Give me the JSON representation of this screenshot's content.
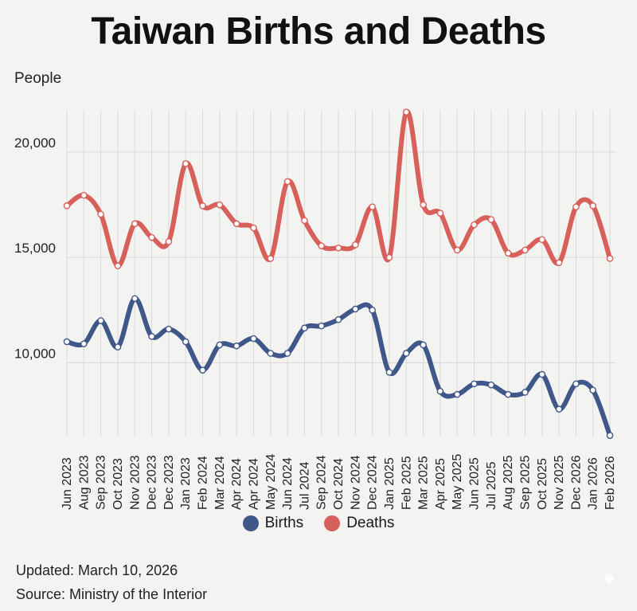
{
  "title": "Taiwan Births and Deaths",
  "footer": {
    "updated": "Updated: March 10, 2026",
    "source": "Source: Ministry of the Interior"
  },
  "colors": {
    "births": "#40578a",
    "deaths": "#d7605a",
    "grid": "#d9d9d9",
    "background": "#f3f3f1"
  },
  "chart_data": {
    "type": "line",
    "title": "Taiwan Births and Deaths",
    "xlabel": "",
    "ylabel": "People",
    "ylim": [
      6500,
      22000
    ],
    "yticks": [
      10000,
      15000,
      20000
    ],
    "ytick_labels": [
      "10,000",
      "15,000",
      "20,000"
    ],
    "grid": true,
    "legend": "bottom",
    "categories": [
      "Jun 2023",
      "Aug 2023",
      "Sep 2023",
      "Oct 2023",
      "Nov 2023",
      "Dec 2023",
      "Dec 2023",
      "Jan 2023",
      "Feb 2024",
      "Mar 2024",
      "Apr 2024",
      "Apr 2024",
      "May 2024",
      "Jun 2024",
      "Jul 2024",
      "Sep 2024",
      "Oct 2024",
      "Nov 2024",
      "Dec 2024",
      "Jan 2025",
      "Feb 2025",
      "Mar 2025",
      "Apr 2025",
      "May 2025",
      "Jun 2025",
      "Jul 2025",
      "Aug 2025",
      "Sep 2025",
      "Oct 2025",
      "Nov 2025",
      "Dec 2026",
      "Jan 2026",
      "Feb 2026"
    ],
    "series": [
      {
        "name": "Births",
        "values": [
          11000,
          10900,
          12000,
          10750,
          13050,
          11250,
          11600,
          11000,
          9650,
          10850,
          10800,
          11150,
          10450,
          10450,
          11650,
          11750,
          12050,
          12550,
          12500,
          9550,
          10450,
          10850,
          8650,
          8500,
          9000,
          8950,
          8500,
          8600,
          9450,
          7800,
          9000,
          8700,
          6550
        ]
      },
      {
        "name": "Deaths",
        "values": [
          17450,
          17950,
          17050,
          14600,
          16600,
          15950,
          15750,
          19450,
          17450,
          17500,
          16600,
          16400,
          14950,
          18600,
          16750,
          15550,
          15450,
          15600,
          17400,
          15000,
          21900,
          17500,
          17100,
          15350,
          16550,
          16800,
          15200,
          15350,
          15850,
          14750,
          17400,
          17450,
          14950
        ]
      }
    ]
  }
}
